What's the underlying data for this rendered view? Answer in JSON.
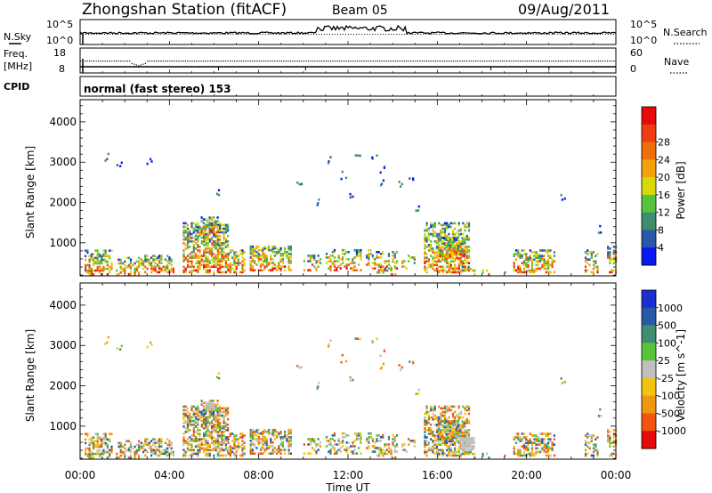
{
  "header": {
    "title": "Zhongshan Station (fitACF)",
    "beam": "Beam 05",
    "date": "09/Aug/2011"
  },
  "top_panels": {
    "nsky_label": "N.Sky",
    "nsearch_label": "N.Search",
    "exp_hi": "10^5",
    "exp_lo": "10^0",
    "freq_label_1": "Freq.",
    "freq_label_2": "[MHz]",
    "freq_hi": "18",
    "freq_lo": "8",
    "nave_label": "Nave",
    "nave_hi": "60",
    "nave_lo": "0",
    "cpid_label": "CPID",
    "cpid_text": "normal (fast stereo) 153"
  },
  "colors": {
    "power": [
      "#0a19f0",
      "#2a58a8",
      "#3f8d6e",
      "#56c43a",
      "#d8d80a",
      "#f2a20f",
      "#f06e0a",
      "#ee3c14",
      "#e60a0a"
    ],
    "velocity": [
      "#e60a0a",
      "#f0560f",
      "#f0960f",
      "#f2c40f",
      "#c0c0c0",
      "#56c43a",
      "#3f8d6e",
      "#2a58a8",
      "#1a2fd0"
    ]
  },
  "chart_data": [
    {
      "type": "heatmap",
      "name": "power",
      "ylabel": "Slant Range [km]",
      "yticks": [
        "1000",
        "2000",
        "3000",
        "4000"
      ],
      "ylim": [
        180,
        4550
      ],
      "colorbar_label": "Power [dB]",
      "colorbar_ticks": [
        "4",
        "8",
        "12",
        "16",
        "20",
        "24",
        "28"
      ],
      "colorbar_range": [
        0,
        32
      ],
      "xticks": [
        "00:00",
        "04:00",
        "08:00",
        "12:00",
        "16:00",
        "20:00",
        "00:00"
      ]
    },
    {
      "type": "heatmap",
      "name": "velocity",
      "ylabel": "Slant Range [km]",
      "yticks": [
        "1000",
        "2000",
        "3000",
        "4000"
      ],
      "ylim": [
        180,
        4550
      ],
      "colorbar_label": "Velocity [m s^-1]",
      "colorbar_ticks": [
        "1000",
        "500",
        "100",
        "25",
        "-25",
        "-100",
        "-500",
        "-1000"
      ],
      "xticks": [
        "00:00",
        "04:00",
        "08:00",
        "12:00",
        "16:00",
        "20:00",
        "00:00"
      ],
      "xlabel": "Time UT"
    }
  ]
}
